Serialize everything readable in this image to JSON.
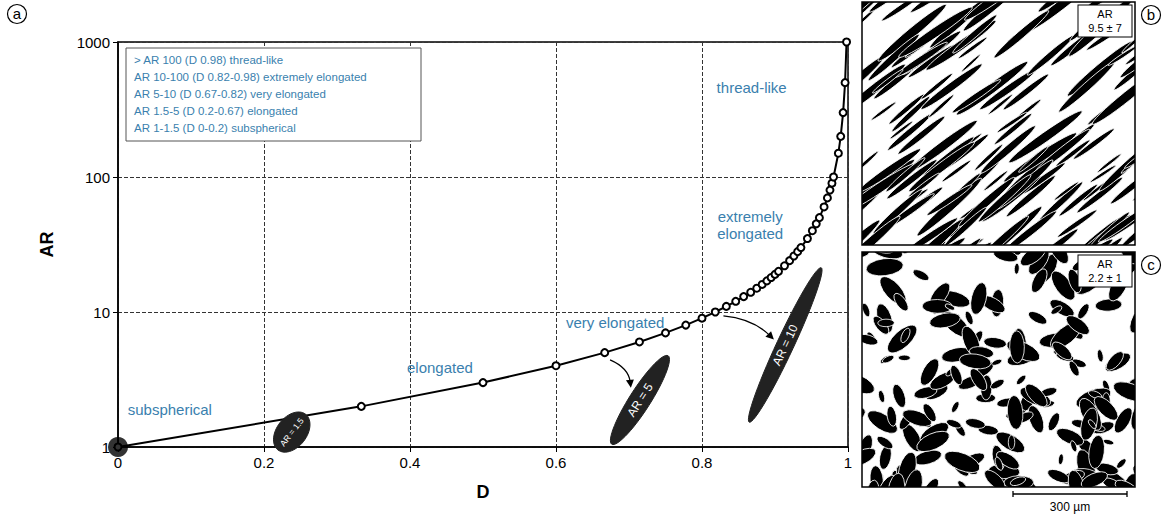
{
  "chart_data": {
    "type": "line",
    "panel_label": "a",
    "x_label": "D",
    "y_label": "AR",
    "log": "y",
    "grid": true,
    "xlim": [
      0,
      1
    ],
    "ylim": [
      1,
      1000
    ],
    "xticks": [
      0,
      0.2,
      0.4,
      0.6,
      0.8,
      1
    ],
    "yticks": [
      1,
      10,
      100,
      1000
    ],
    "series": [
      {
        "type": "line",
        "color": "#000000",
        "marker": "open_circle",
        "line_style": "solid",
        "x": [
          0,
          0.3333,
          0.5,
          0.6,
          0.6667,
          0.7143,
          0.75,
          0.7778,
          0.8,
          0.8182,
          0.8333,
          0.8462,
          0.8571,
          0.8667,
          0.875,
          0.8824,
          0.8889,
          0.8947,
          0.9,
          0.9048,
          0.913,
          0.92,
          0.9259,
          0.931,
          0.9355,
          0.9444,
          0.9512,
          0.9565,
          0.9608,
          0.9672,
          0.9718,
          0.9753,
          0.978,
          0.9802,
          0.9868,
          0.99,
          0.9933,
          0.996,
          0.998
        ],
        "values": [
          1,
          2,
          3,
          4,
          5,
          6,
          7,
          8,
          9,
          10,
          11,
          12,
          13,
          14,
          15,
          16,
          17,
          18,
          19,
          20,
          22,
          24,
          26,
          28,
          30,
          35,
          40,
          45,
          50,
          60,
          70,
          80,
          90,
          100,
          150,
          200,
          300,
          500,
          1000
        ]
      },
      {
        "type": "scatter",
        "color": "#000000",
        "marker": "filled_circle",
        "x": [
          0
        ],
        "values": [
          1
        ]
      }
    ],
    "notes": [
      "> AR 100 (D 0.98) thread-like",
      "AR 10-100 (D 0.82-0.98) extremely elongated",
      "AR 5-10 (D 0.67-0.82) very elongated",
      "AR 1.5-5 (D 0.2-0.67) elongated",
      "AR 1-1.5 (D 0-0.2) subspherical"
    ],
    "annotations": [
      {
        "text": "subspherical",
        "x": 0.071,
        "y": 1.88
      },
      {
        "text": "elongated",
        "x": 0.441,
        "y": 3.85
      },
      {
        "text": "very elongated",
        "x": 0.681,
        "y": 8.3
      },
      {
        "text": "extremely\nelongated",
        "x": 0.866,
        "y": 44
      },
      {
        "text": "thread-like",
        "x": 0.868,
        "y": 457
      }
    ],
    "shapes": [
      {
        "text": "AR = 1.5",
        "ar": 1.5,
        "x": 0.238,
        "y": 1.29
      },
      {
        "text": "AR = 5",
        "ar": 5,
        "x": 0.715,
        "y": 2.23
      },
      {
        "text": "AR = 10",
        "ar": 10,
        "x": 0.914,
        "y": 5.7
      }
    ]
  },
  "panels": [
    {
      "label": "b",
      "badge_title": "AR",
      "badge_value": "9.5 ± 7",
      "ar": 9.5
    },
    {
      "label": "c",
      "badge_title": "AR",
      "badge_value": "2.2 ± 1",
      "ar": 2.2,
      "scale_bar": "300 µm"
    }
  ]
}
